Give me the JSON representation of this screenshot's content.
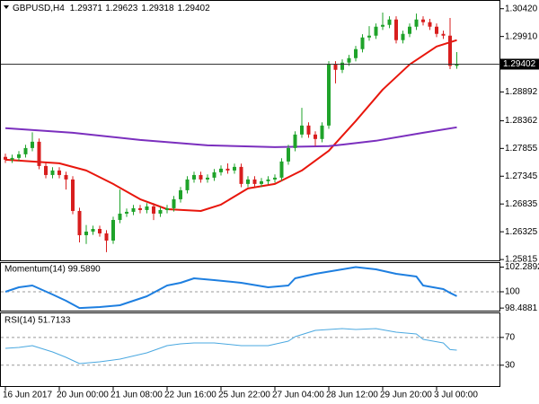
{
  "chart_data": [
    {
      "type": "candlestick",
      "title": "GBPUSD,H4",
      "up_color": "#1fa32a",
      "down_color": "#d81e1e",
      "last_line_color": "#333333",
      "open": [
        1.277,
        1.27648,
        1.27681,
        1.27747,
        1.27862,
        1.27978,
        1.27532,
        1.27367,
        1.2745,
        1.27367,
        1.27285,
        1.26707,
        1.26262,
        1.26328,
        1.26377,
        1.26295,
        1.26163,
        1.26542,
        1.26658,
        1.26691,
        1.26757,
        1.26724,
        1.2679,
        1.26658,
        1.26724,
        1.26757,
        1.26922,
        1.27087,
        1.27285,
        1.27367,
        1.27285,
        1.27318,
        1.27417,
        1.27483,
        1.2745,
        1.27516,
        1.27203,
        1.27285,
        1.27203,
        1.27252,
        1.27285,
        1.27318,
        1.27615,
        1.27862,
        1.2811,
        1.28275,
        1.2811,
        1.28028,
        1.28275,
        1.29397,
        1.29298,
        1.2943,
        1.29513,
        1.29678,
        1.29892,
        1.29925,
        1.3009,
        1.30123,
        1.30222,
        1.29843,
        1.29958,
        1.3009,
        1.30222,
        1.30173,
        1.3009,
        1.29958,
        1.29925,
        1.29371
      ],
      "high": [
        1.2776,
        1.27741,
        1.27807,
        1.27922,
        1.2815,
        1.28038,
        1.27592,
        1.2751,
        1.2751,
        1.27427,
        1.27345,
        1.26767,
        1.2645,
        1.26437,
        1.26437,
        1.26355,
        1.26602,
        1.271,
        1.26751,
        1.26817,
        1.26817,
        1.2685,
        1.2685,
        1.26784,
        1.26817,
        1.26982,
        1.27147,
        1.27345,
        1.27427,
        1.27427,
        1.27378,
        1.27477,
        1.27543,
        1.2758,
        1.27576,
        1.27576,
        1.27345,
        1.27345,
        1.27312,
        1.27345,
        1.27378,
        1.27675,
        1.27922,
        1.2817,
        1.286,
        1.28335,
        1.2817,
        1.28335,
        1.29457,
        1.29457,
        1.2949,
        1.29573,
        1.29738,
        1.29952,
        1.301,
        1.3015,
        1.3035,
        1.30282,
        1.30282,
        1.30018,
        1.3015,
        1.3033,
        1.30282,
        1.30233,
        1.3015,
        1.30018,
        1.3025,
        1.29623
      ],
      "low": [
        1.27588,
        1.27588,
        1.27621,
        1.27687,
        1.27802,
        1.27472,
        1.27307,
        1.27307,
        1.27307,
        1.271,
        1.26647,
        1.2613,
        1.261,
        1.26268,
        1.26235,
        1.2595,
        1.26103,
        1.26482,
        1.26598,
        1.26631,
        1.26664,
        1.26664,
        1.2654,
        1.26598,
        1.26664,
        1.26697,
        1.26862,
        1.27027,
        1.27225,
        1.27225,
        1.27225,
        1.27258,
        1.27357,
        1.2739,
        1.2739,
        1.27143,
        1.27143,
        1.27143,
        1.27143,
        1.27192,
        1.27225,
        1.27258,
        1.27555,
        1.27802,
        1.2805,
        1.2805,
        1.279,
        1.27968,
        1.28215,
        1.2905,
        1.29238,
        1.2937,
        1.29453,
        1.29618,
        1.29832,
        1.29865,
        1.3003,
        1.30063,
        1.29783,
        1.29783,
        1.29898,
        1.3003,
        1.30113,
        1.3003,
        1.29898,
        1.29865,
        1.29311,
        1.29318
      ],
      "close": [
        1.27648,
        1.27681,
        1.27747,
        1.27862,
        1.27978,
        1.27532,
        1.27367,
        1.2745,
        1.27367,
        1.27285,
        1.26707,
        1.26262,
        1.26328,
        1.26377,
        1.26295,
        1.26163,
        1.26542,
        1.26658,
        1.26691,
        1.26757,
        1.26724,
        1.2679,
        1.26658,
        1.26724,
        1.26757,
        1.26922,
        1.27087,
        1.27285,
        1.27367,
        1.27285,
        1.27318,
        1.27417,
        1.27483,
        1.2745,
        1.27516,
        1.27203,
        1.27285,
        1.27203,
        1.27252,
        1.27285,
        1.27318,
        1.27615,
        1.27862,
        1.2811,
        1.28275,
        1.2811,
        1.28028,
        1.28275,
        1.29397,
        1.29298,
        1.2943,
        1.29513,
        1.29678,
        1.29892,
        1.29925,
        1.3009,
        1.30123,
        1.30222,
        1.29843,
        1.29958,
        1.3009,
        1.30222,
        1.30173,
        1.3009,
        1.29958,
        1.29925,
        1.29371,
        1.29402
      ],
      "lines": [
        {
          "color": "#e8160c",
          "x": [
            0,
            4,
            8,
            12,
            16,
            20,
            24,
            29,
            32,
            36,
            40,
            44,
            48,
            52,
            56,
            60,
            64,
            67
          ],
          "values": [
            1.27648,
            1.27615,
            1.27582,
            1.2745,
            1.27203,
            1.26922,
            1.2674,
            1.26707,
            1.26823,
            1.2712,
            1.27203,
            1.2745,
            1.27813,
            1.28358,
            1.28935,
            1.29397,
            1.29727,
            1.29843
          ]
        },
        {
          "color": "#7b2fbe",
          "x": [
            0,
            10,
            20,
            30,
            40,
            48,
            55,
            62,
            67
          ],
          "values": [
            1.28226,
            1.28143,
            1.28011,
            1.27912,
            1.27879,
            1.27896,
            1.27995,
            1.28143,
            1.28242
          ]
        }
      ],
      "ylim": [
        1.258,
        1.3058
      ],
      "yticks": [
        {
          "value": 1.3042,
          "label": "1.30420"
        },
        {
          "value": 1.2991,
          "label": "1.29910"
        },
        1.28892,
        1.28362,
        1.27855,
        1.27345,
        1.26835,
        1.26325,
        1.25815
      ],
      "xticks": [
        {
          "value": 0,
          "label": "16 Jun 2017"
        },
        {
          "value": 8,
          "label": "20 Jun 00:00"
        },
        {
          "value": 16,
          "label": "21 Jun 08:00"
        },
        {
          "value": 24,
          "label": "22 Jun 16:00"
        },
        {
          "value": 32,
          "label": "25 Jun 22:00"
        },
        {
          "value": 40,
          "label": "27 Jun 04:00"
        },
        {
          "value": 48,
          "label": "28 Jun 12:00"
        },
        {
          "value": 56,
          "label": "29 Jun 20:00"
        },
        {
          "value": 64,
          "label": "3 Jul 00:00"
        }
      ]
    },
    {
      "type": "line",
      "title": "Momentum(14) 99.5890",
      "color": "#1e7fe0",
      "width": 2,
      "x": [
        0,
        2,
        4,
        7,
        9,
        11,
        14,
        17,
        21,
        24,
        26,
        28,
        31,
        35,
        39,
        42,
        43,
        46,
        50,
        52,
        55,
        58,
        61,
        62,
        65,
        66,
        67
      ],
      "values": [
        100.0,
        100.42,
        100.58,
        99.75,
        99.17,
        98.49,
        98.58,
        98.75,
        99.58,
        100.58,
        100.83,
        101.25,
        101.08,
        100.83,
        100.42,
        100.58,
        101.25,
        101.67,
        102.08,
        102.29,
        102.08,
        101.67,
        101.42,
        100.58,
        100.25,
        99.9,
        99.589
      ],
      "ylim": [
        98.25,
        102.75
      ],
      "yticks": [
        102.2892,
        100,
        98.4881
      ],
      "levels": [
        100
      ]
    },
    {
      "type": "line",
      "title": "RSI(14) 51.7133",
      "color": "#4aa8e0",
      "width": 1,
      "x": [
        0,
        2,
        4,
        7,
        9,
        11,
        14,
        17,
        21,
        24,
        26,
        28,
        31,
        35,
        39,
        42,
        43,
        46,
        50,
        52,
        55,
        58,
        61,
        62,
        65,
        66,
        67
      ],
      "values": [
        54.3,
        55.6,
        58.2,
        49.1,
        41.4,
        32.3,
        34.9,
        38.8,
        47.8,
        58.2,
        60.8,
        62.0,
        62.0,
        58.2,
        58.2,
        64.6,
        71.1,
        80.1,
        82.7,
        81.4,
        82.7,
        77.6,
        75.0,
        67.2,
        62.0,
        52.5,
        51.7133
      ],
      "ylim": [
        0,
        106
      ],
      "yticks": [
        70,
        30
      ],
      "levels": [
        70,
        30
      ]
    }
  ]
}
